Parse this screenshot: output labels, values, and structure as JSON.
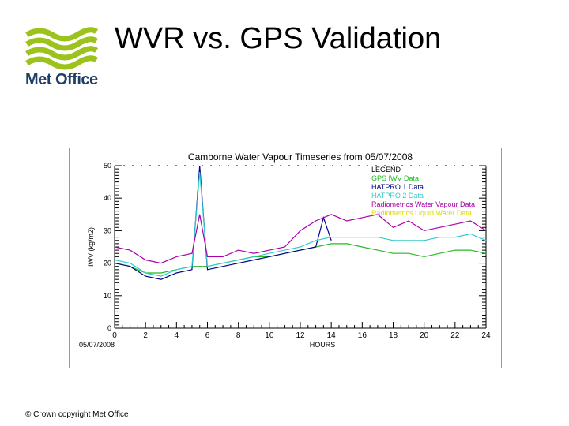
{
  "slide": {
    "title": "WVR vs. GPS Validation",
    "logo_text": "Met Office",
    "copyright": "© Crown copyright   Met Office"
  },
  "colors": {
    "logo_green": "#9bc31c",
    "logo_text": "#1d3f66",
    "legend_text": "#000000",
    "gps": "#22bb22",
    "hatpro1": "#00008b",
    "hatpro2": "#33cccc",
    "radiometrics_wv": "#aa00aa",
    "radiometrics_liquid": "#dddd00",
    "axis": "#000000"
  },
  "chart_data": {
    "type": "line",
    "title": "Camborne Water Vapour Timeseries from 05/07/2008",
    "xlabel": "HOURS",
    "ylabel": "IWV (kg/m2)",
    "xlim": [
      0,
      24
    ],
    "ylim": [
      0,
      50
    ],
    "x_ticks": [
      "0",
      "2",
      "4",
      "6",
      "8",
      "10",
      "12",
      "14",
      "16",
      "18",
      "20",
      "22",
      "24"
    ],
    "y_ticks": [
      "0",
      "10",
      "20",
      "30",
      "40",
      "50"
    ],
    "x_start_label": "05/07/2008",
    "legend_title": "LEGEND",
    "legend_position": "top-right",
    "series": [
      {
        "name": "GPS IWV Data",
        "color_key": "gps",
        "x": [
          0,
          1,
          2,
          3,
          4,
          5,
          6,
          7,
          8,
          9,
          10,
          11,
          12,
          13,
          14,
          15,
          16,
          17,
          18,
          19,
          20,
          21,
          22,
          23,
          24
        ],
        "y": [
          20,
          19,
          17,
          17,
          18,
          19,
          19,
          20,
          21,
          22,
          22,
          23,
          24,
          25,
          26,
          26,
          25,
          24,
          23,
          23,
          22,
          23,
          24,
          24,
          23
        ]
      },
      {
        "name": "HATPRO 1 Data",
        "color_key": "hatpro1",
        "x": [
          0,
          1,
          2,
          3,
          4,
          5,
          5.5,
          6,
          7,
          8,
          9,
          10,
          11,
          12,
          13,
          13.5,
          14
        ],
        "y": [
          20,
          19,
          16,
          15,
          17,
          18,
          50,
          18,
          19,
          20,
          21,
          22,
          23,
          24,
          25,
          34,
          27
        ]
      },
      {
        "name": "HATPRO 2 Data",
        "color_key": "hatpro2",
        "x": [
          0,
          1,
          2,
          3,
          4,
          5,
          5.5,
          6,
          7,
          8,
          9,
          10,
          11,
          12,
          13,
          14,
          15,
          16,
          17,
          18,
          19,
          20,
          21,
          22,
          23,
          24
        ],
        "y": [
          21,
          20,
          17,
          16,
          18,
          19,
          48,
          19,
          20,
          21,
          22,
          23,
          24,
          25,
          27,
          28,
          28,
          28,
          28,
          27,
          27,
          27,
          28,
          28,
          29,
          27
        ]
      },
      {
        "name": "Radiometrics Water Vapour Data",
        "color_key": "radiometrics_wv",
        "x": [
          0,
          1,
          2,
          3,
          4,
          5,
          5.5,
          6,
          7,
          8,
          9,
          10,
          11,
          12,
          13,
          14,
          15,
          16,
          17,
          18,
          19,
          20,
          21,
          22,
          23,
          24
        ],
        "y": [
          25,
          24,
          21,
          20,
          22,
          23,
          35,
          22,
          22,
          24,
          23,
          24,
          25,
          30,
          33,
          35,
          33,
          34,
          35,
          31,
          33,
          30,
          31,
          32,
          33,
          30
        ]
      },
      {
        "name": "Radiometrics Liquid Water Data",
        "color_key": "radiometrics_liquid",
        "x": [],
        "y": []
      }
    ]
  }
}
